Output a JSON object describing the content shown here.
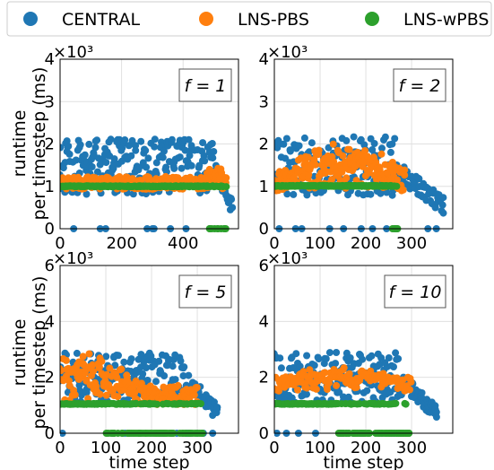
{
  "legend": {
    "entries": [
      {
        "label": "CENTRAL",
        "color": "#1f77b4"
      },
      {
        "label": "LNS-PBS",
        "color": "#ff7f0e"
      },
      {
        "label": "LNS-wPBS",
        "color": "#2ca02c"
      }
    ]
  },
  "chart_data": [
    {
      "type": "scatter",
      "annotation": "f = 1",
      "scale_text": "×10³",
      "xlabel": "",
      "ylabel": "runtime per timestep (ms)",
      "xlim": [
        0,
        580
      ],
      "ylim": [
        0,
        4000
      ],
      "xticks": [
        0,
        200,
        400
      ],
      "yticks": [
        0,
        1000,
        2000,
        3000,
        4000
      ],
      "yticklabels": [
        "0",
        "1",
        "2",
        "3",
        "4"
      ],
      "grid": true,
      "legend_position": "top",
      "series": [
        {
          "name": "CENTRAL",
          "color": "#1f77b4",
          "gen": {
            "x0": 0,
            "x1": 560,
            "n": 260,
            "seed": 11,
            "kind": "central_wide",
            "base": 1400,
            "spread": 650,
            "dropStart": 500,
            "dropEnd": 560,
            "dropTo": 500,
            "baselineFrac": 0.06
          }
        },
        {
          "name": "LNS-PBS",
          "color": "#ff7f0e",
          "gen": {
            "x0": 0,
            "x1": 540,
            "n": 230,
            "seed": 23,
            "kind": "band",
            "base": 1080,
            "spread": 150,
            "peakX": 500,
            "peak": 1400
          }
        },
        {
          "name": "LNS-wPBS",
          "color": "#2ca02c",
          "gen": {
            "x0": 0,
            "x1": 540,
            "n": 220,
            "seed": 37,
            "kind": "flat",
            "base": 1000,
            "spread": 10,
            "zeroFrom": 480
          }
        }
      ]
    },
    {
      "type": "scatter",
      "annotation": "f = 2",
      "scale_text": "×10³",
      "xlabel": "",
      "ylabel": "",
      "xlim": [
        0,
        390
      ],
      "ylim": [
        0,
        4000
      ],
      "xticks": [
        0,
        100,
        200,
        300
      ],
      "yticks": [
        0,
        1000,
        2000,
        3000,
        4000
      ],
      "yticklabels": [
        "0",
        "1",
        "2",
        "3",
        "4"
      ],
      "grid": true,
      "legend_position": "top",
      "series": [
        {
          "name": "CENTRAL",
          "color": "#1f77b4",
          "gen": {
            "x0": 0,
            "x1": 370,
            "n": 220,
            "seed": 41,
            "kind": "central_wide",
            "base": 1400,
            "spread": 700,
            "dropStart": 265,
            "dropEnd": 370,
            "dropTo": 550,
            "baselineFrac": 0.05
          }
        },
        {
          "name": "LNS-PBS",
          "color": "#ff7f0e",
          "gen": {
            "x0": 0,
            "x1": 285,
            "n": 210,
            "seed": 53,
            "kind": "hump",
            "base": 1100,
            "spread": 550,
            "peakX": 150,
            "peak": 1800
          }
        },
        {
          "name": "LNS-wPBS",
          "color": "#2ca02c",
          "gen": {
            "x0": 0,
            "x1": 270,
            "n": 200,
            "seed": 67,
            "kind": "flat",
            "base": 1010,
            "spread": 10,
            "zeroFrom": 255
          }
        }
      ]
    },
    {
      "type": "scatter",
      "annotation": "f = 5",
      "scale_text": "×10³",
      "xlabel": "time step",
      "ylabel": "runtime per timestep (ms)",
      "xlim": [
        0,
        390
      ],
      "ylim": [
        0,
        6000
      ],
      "xticks": [
        0,
        100,
        200,
        300
      ],
      "yticks": [
        0,
        2000,
        4000,
        6000
      ],
      "yticklabels": [
        "0",
        "2",
        "4",
        "6"
      ],
      "grid": true,
      "legend_position": "top",
      "series": [
        {
          "name": "CENTRAL",
          "color": "#1f77b4",
          "gen": {
            "x0": 0,
            "x1": 345,
            "n": 230,
            "seed": 71,
            "kind": "central_wide",
            "base": 1900,
            "spread": 900,
            "dropStart": 280,
            "dropEnd": 345,
            "dropTo": 700,
            "baselineFrac": 0.04
          }
        },
        {
          "name": "LNS-PBS",
          "color": "#ff7f0e",
          "gen": {
            "x0": 0,
            "x1": 300,
            "n": 190,
            "seed": 83,
            "kind": "hump",
            "base": 1300,
            "spread": 700,
            "peakX": 60,
            "peak": 2600
          }
        },
        {
          "name": "LNS-wPBS",
          "color": "#2ca02c",
          "gen": {
            "x0": 0,
            "x1": 310,
            "n": 180,
            "seed": 97,
            "kind": "flat",
            "base": 1050,
            "spread": 15,
            "zeroFrom": 100
          }
        }
      ]
    },
    {
      "type": "scatter",
      "annotation": "f = 10",
      "scale_text": "×10³",
      "xlabel": "time step",
      "ylabel": "",
      "xlim": [
        0,
        390
      ],
      "ylim": [
        0,
        6000
      ],
      "xticks": [
        0,
        100,
        200,
        300
      ],
      "yticks": [
        0,
        2000,
        4000,
        6000
      ],
      "yticklabels": [
        "0",
        "2",
        "4",
        "6"
      ],
      "grid": true,
      "legend_position": "top",
      "series": [
        {
          "name": "CENTRAL",
          "color": "#1f77b4",
          "gen": {
            "x0": 0,
            "x1": 355,
            "n": 230,
            "seed": 101,
            "kind": "central_wide",
            "base": 1900,
            "spread": 900,
            "dropStart": 280,
            "dropEnd": 355,
            "dropTo": 700,
            "baselineFrac": 0.04
          }
        },
        {
          "name": "LNS-PBS",
          "color": "#ff7f0e",
          "gen": {
            "x0": 0,
            "x1": 300,
            "n": 140,
            "seed": 113,
            "kind": "hump",
            "base": 1700,
            "spread": 500,
            "peakX": 150,
            "peak": 2200
          }
        },
        {
          "name": "LNS-wPBS",
          "color": "#2ca02c",
          "gen": {
            "x0": 0,
            "x1": 295,
            "n": 170,
            "seed": 127,
            "kind": "flat",
            "base": 1050,
            "spread": 15,
            "zeroFrom": 140
          }
        }
      ]
    }
  ]
}
